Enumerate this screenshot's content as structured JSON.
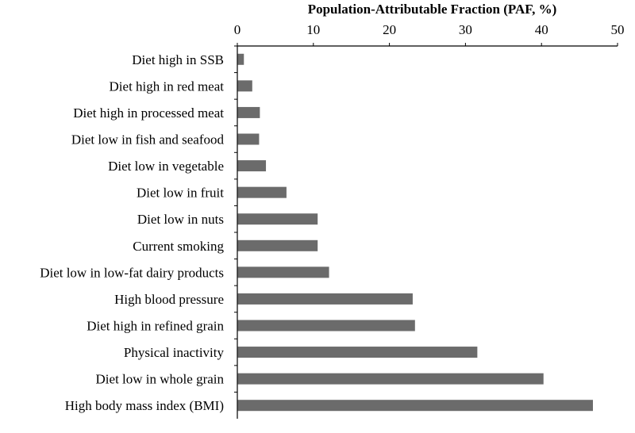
{
  "chart_data": {
    "type": "bar",
    "orientation": "horizontal",
    "xlabel": "Population-Attributable Fraction (PAF, %)",
    "xlabel_position": "top",
    "xlim": [
      0,
      50
    ],
    "xticks": [
      0,
      10,
      20,
      30,
      40,
      50
    ],
    "grid": false,
    "bar_color": "#6b6b6b",
    "categories": [
      "Diet high in SSB",
      "Diet high in red meat",
      "Diet high in processed meat",
      "Diet low in fish and seafood",
      "Diet low in vegetable",
      "Diet low in fruit",
      "Diet low in nuts",
      "Current smoking",
      "Diet low in low-fat dairy products",
      "High blood pressure",
      "Diet high in refined grain",
      "Physical inactivity",
      "Diet low in whole grain",
      "High body mass index (BMI)"
    ],
    "values": [
      0.8,
      1.9,
      2.9,
      2.8,
      3.7,
      6.4,
      10.5,
      10.5,
      12.0,
      23.0,
      23.3,
      31.5,
      40.2,
      46.7
    ]
  }
}
